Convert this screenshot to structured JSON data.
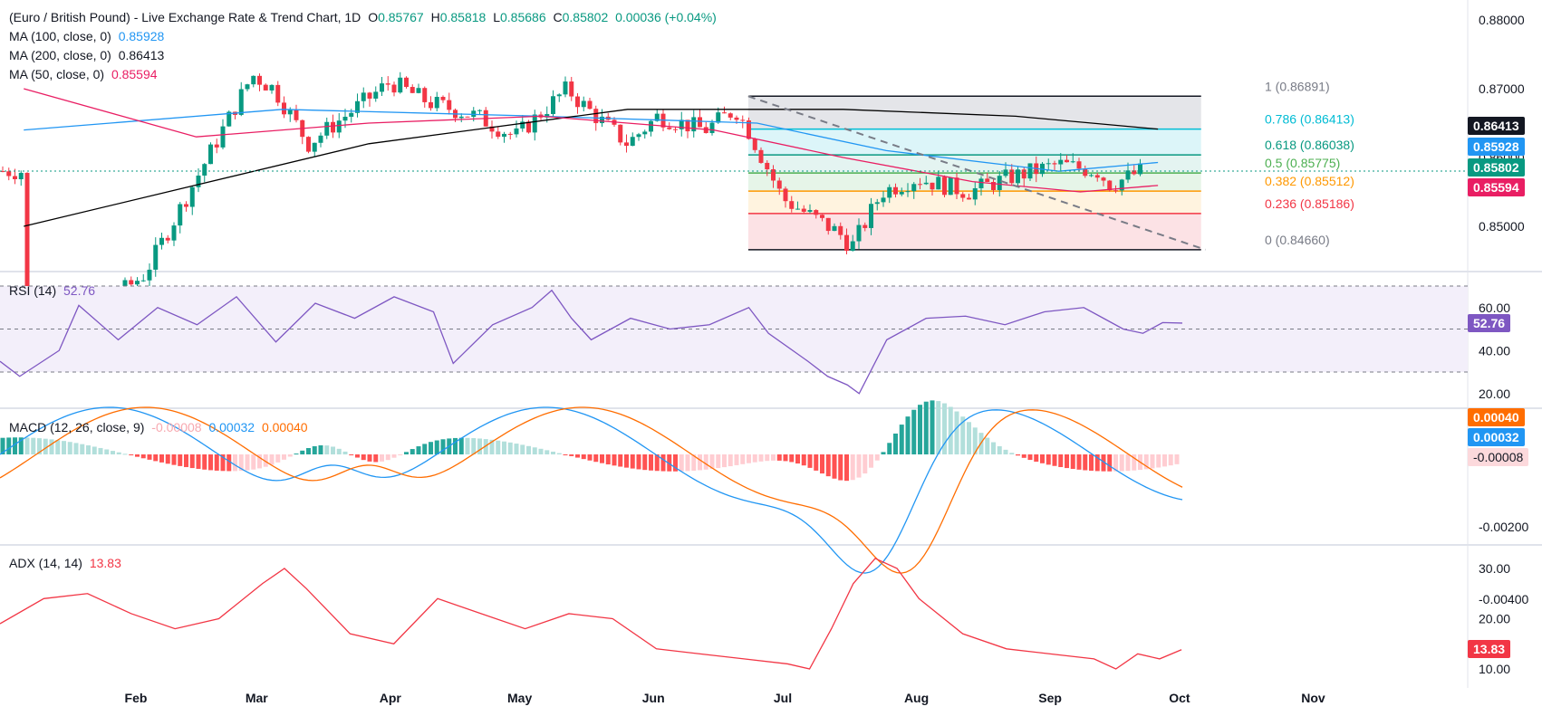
{
  "header": {
    "title": "(Euro / British Pound) - Live Exchange Rate & Trend Chart, 1D",
    "ohlc": {
      "o_label": "O",
      "o": "0.85767",
      "h_label": "H",
      "h": "0.85818",
      "l_label": "L",
      "l": "0.85686",
      "c_label": "C",
      "c": "0.85802",
      "change": "0.00036 (+0.04%)"
    },
    "ma100_label": "MA (100, close, 0)",
    "ma100_value": "0.85928",
    "ma200_label": "MA (200, close, 0)",
    "ma200_value": "0.86413",
    "ma50_label": "MA (50, close, 0)",
    "ma50_value": "0.85594"
  },
  "rsi_header": {
    "label": "RSI (14)",
    "value": "52.76"
  },
  "macd_header": {
    "label": "MACD (12, 26, close, 9)",
    "hist": "-0.00008",
    "macd": "0.00032",
    "signal": "0.00040"
  },
  "adx_header": {
    "label": "ADX (14, 14)",
    "value": "13.83"
  },
  "badges": {
    "ma200": "0.86413",
    "ma100": "0.85928",
    "price": "0.85802",
    "ma50": "0.85594",
    "rsi": "52.76",
    "macd_signal": "0.00040",
    "macd": "0.00032",
    "macd_hist": "-0.00008",
    "adx": "13.83"
  },
  "colors": {
    "up": "#089981",
    "down": "#f23645",
    "ma100": "#2196f3",
    "ma200": "#000000",
    "ma50": "#e91e63",
    "rsi": "#7e57c2",
    "macd": "#2196f3",
    "signal": "#ff6d00",
    "adx": "#f23645",
    "axis_text": "#131722"
  },
  "chart_data": [
    {
      "type": "candlestick",
      "title": "(Euro / British Pound) - Live Exchange Rate & Trend Chart, 1D",
      "ylim": [
        0.8455,
        0.8815
      ],
      "y_ticks": [
        "0.88000",
        "0.87000",
        "0.86000",
        "0.85000"
      ],
      "x_ticks": [
        "Feb",
        "Mar",
        "Apr",
        "May",
        "Jun",
        "Jul",
        "Aug",
        "Sep",
        "Oct",
        "Nov"
      ],
      "last_close": 0.85802,
      "key_points": [
        {
          "date": "Jan 6",
          "close": 0.83
        },
        {
          "date": "Feb 3",
          "close": 0.843
        },
        {
          "date": "Feb 28",
          "close": 0.872
        },
        {
          "date": "Mar 5",
          "close": 0.87
        },
        {
          "date": "Mar 13",
          "close": 0.862
        },
        {
          "date": "Apr 1",
          "close": 0.871
        },
        {
          "date": "Apr 10",
          "close": 0.868
        },
        {
          "date": "Apr 21",
          "close": 0.866
        },
        {
          "date": "Apr 30",
          "close": 0.863
        },
        {
          "date": "May 12",
          "close": 0.87
        },
        {
          "date": "May 15",
          "close": 0.868
        },
        {
          "date": "May 26",
          "close": 0.862
        },
        {
          "date": "Jun 2",
          "close": 0.866
        },
        {
          "date": "Jun 13",
          "close": 0.864
        },
        {
          "date": "Jun 20",
          "close": 0.867
        },
        {
          "date": "Jun 23",
          "close": 0.864
        },
        {
          "date": "Jul 1",
          "close": 0.854
        },
        {
          "date": "Jul 14",
          "close": 0.849
        },
        {
          "date": "Jul 17",
          "close": 0.847
        },
        {
          "date": "Jul 24",
          "close": 0.855
        },
        {
          "date": "Aug 1",
          "close": 0.857
        },
        {
          "date": "Aug 13",
          "close": 0.855
        },
        {
          "date": "Aug 22",
          "close": 0.857
        },
        {
          "date": "Sep 3",
          "close": 0.859
        },
        {
          "date": "Sep 12",
          "close": 0.858
        },
        {
          "date": "Sep 15",
          "close": 0.856
        },
        {
          "date": "Sep 22",
          "close": 0.85802
        }
      ],
      "series": [
        {
          "name": "MA (100, close, 0)",
          "last": 0.85928,
          "values": [
            [
              0,
              0.864
            ],
            [
              60,
              0.867
            ],
            [
              120,
              0.866
            ],
            [
              170,
              0.865
            ],
            [
              200,
              0.861
            ],
            [
              240,
              0.858
            ],
            [
              263,
              0.85928
            ]
          ]
        },
        {
          "name": "MA (200, close, 0)",
          "last": 0.86413,
          "values": [
            [
              0,
              0.85
            ],
            [
              80,
              0.862
            ],
            [
              140,
              0.867
            ],
            [
              190,
              0.867
            ],
            [
              230,
              0.866
            ],
            [
              263,
              0.86413
            ]
          ]
        },
        {
          "name": "MA (50, close, 0)",
          "last": 0.85594,
          "values": [
            [
              0,
              0.87
            ],
            [
              40,
              0.863
            ],
            [
              80,
              0.865
            ],
            [
              120,
              0.866
            ],
            [
              160,
              0.864
            ],
            [
              190,
              0.86
            ],
            [
              220,
              0.8565
            ],
            [
              245,
              0.855
            ],
            [
              263,
              0.85594
            ]
          ]
        }
      ],
      "fibonacci": [
        {
          "label": "1 (0.86891)",
          "value": 0.86891
        },
        {
          "label": "0.786 (0.86413)",
          "value": 0.86413
        },
        {
          "label": "0.618 (0.86038)",
          "value": 0.86038
        },
        {
          "label": "0.5 (0.85775)",
          "value": 0.85775
        },
        {
          "label": "0.382 (0.85512)",
          "value": 0.85512
        },
        {
          "label": "0.236 (0.85186)",
          "value": 0.85186
        },
        {
          "label": "0 (0.84660)",
          "value": 0.8466
        }
      ],
      "trendline": {
        "from": {
          "date": "Jun 23",
          "value": 0.8689
        },
        "to": {
          "date": "Oct 7",
          "value": 0.8466
        },
        "style": "dashed"
      }
    },
    {
      "type": "line",
      "title": "RSI (14)",
      "ylim": [
        15,
        75
      ],
      "y_ticks": [
        "60.00",
        "40.00",
        "20.00"
      ],
      "levels": [
        70,
        50,
        30
      ],
      "values": [
        [
          0,
          35
        ],
        [
          5,
          28
        ],
        [
          15,
          40
        ],
        [
          20,
          61
        ],
        [
          30,
          45
        ],
        [
          40,
          60
        ],
        [
          50,
          52
        ],
        [
          60,
          65
        ],
        [
          70,
          44
        ],
        [
          80,
          62
        ],
        [
          90,
          55
        ],
        [
          100,
          65
        ],
        [
          110,
          58
        ],
        [
          115,
          34
        ],
        [
          125,
          52
        ],
        [
          135,
          60
        ],
        [
          140,
          68
        ],
        [
          145,
          55
        ],
        [
          150,
          45
        ],
        [
          160,
          55
        ],
        [
          170,
          50
        ],
        [
          180,
          52
        ],
        [
          190,
          60
        ],
        [
          195,
          48
        ],
        [
          205,
          35
        ],
        [
          210,
          28
        ],
        [
          215,
          24
        ],
        [
          218,
          20
        ],
        [
          225,
          45
        ],
        [
          235,
          55
        ],
        [
          245,
          56
        ],
        [
          255,
          52
        ],
        [
          265,
          58
        ],
        [
          275,
          60
        ],
        [
          280,
          55
        ],
        [
          285,
          50
        ],
        [
          290,
          48
        ],
        [
          295,
          53
        ],
        [
          300,
          52.76
        ]
      ],
      "last": 52.76
    },
    {
      "type": "line",
      "title": "MACD (12, 26, close, 9)",
      "ylim": [
        -0.0045,
        0.0015
      ],
      "y_ticks": [
        "-0.00200",
        "-0.00400"
      ],
      "series": [
        {
          "name": "MACD",
          "last": 0.00032
        },
        {
          "name": "Signal",
          "last": 0.0004
        },
        {
          "name": "Histogram",
          "last": -8e-05
        }
      ]
    },
    {
      "type": "line",
      "title": "ADX (14, 14)",
      "ylim": [
        8,
        34
      ],
      "y_ticks": [
        "30.00",
        "20.00",
        "10.00"
      ],
      "values": [
        [
          0,
          19
        ],
        [
          10,
          24
        ],
        [
          20,
          25
        ],
        [
          30,
          21
        ],
        [
          40,
          18
        ],
        [
          50,
          20
        ],
        [
          60,
          27
        ],
        [
          65,
          30
        ],
        [
          70,
          26
        ],
        [
          80,
          17
        ],
        [
          90,
          15
        ],
        [
          100,
          24
        ],
        [
          110,
          21
        ],
        [
          120,
          18
        ],
        [
          130,
          21
        ],
        [
          140,
          20
        ],
        [
          150,
          14
        ],
        [
          160,
          13
        ],
        [
          170,
          12
        ],
        [
          180,
          11
        ],
        [
          185,
          10
        ],
        [
          190,
          18
        ],
        [
          195,
          27
        ],
        [
          200,
          32
        ],
        [
          205,
          30
        ],
        [
          210,
          24
        ],
        [
          220,
          17
        ],
        [
          230,
          14
        ],
        [
          240,
          13
        ],
        [
          250,
          12
        ],
        [
          255,
          10
        ],
        [
          260,
          13
        ],
        [
          265,
          12
        ],
        [
          270,
          13.83
        ]
      ],
      "last": 13.83
    }
  ]
}
